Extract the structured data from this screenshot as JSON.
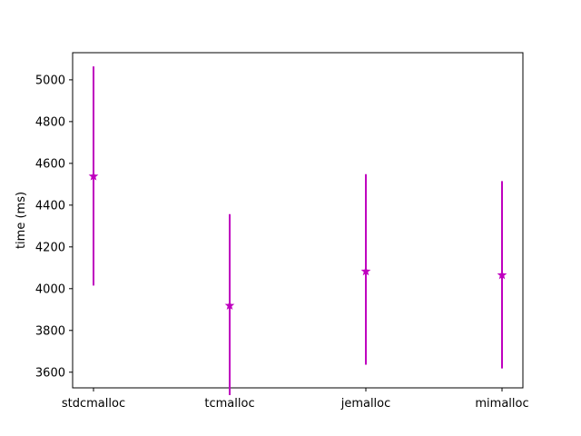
{
  "chart_data": {
    "type": "scatter",
    "title": "",
    "xlabel": "",
    "ylabel": "time (ms)",
    "categories": [
      "stdcmalloc",
      "tcmalloc",
      "jemalloc",
      "mimalloc"
    ],
    "series": [
      {
        "values": [
          4538,
          3919,
          4083,
          4065
        ],
        "error_low": [
          4015,
          3490,
          3636,
          3618
        ],
        "error_high": [
          5064,
          4357,
          4548,
          4515
        ],
        "marker": "star",
        "color": "#bf00bf"
      }
    ],
    "ylim": [
      3525,
      5130
    ],
    "yticks": [
      3600,
      3800,
      4000,
      4200,
      4400,
      4600,
      4800,
      5000
    ],
    "grid": false,
    "legend": "none"
  }
}
